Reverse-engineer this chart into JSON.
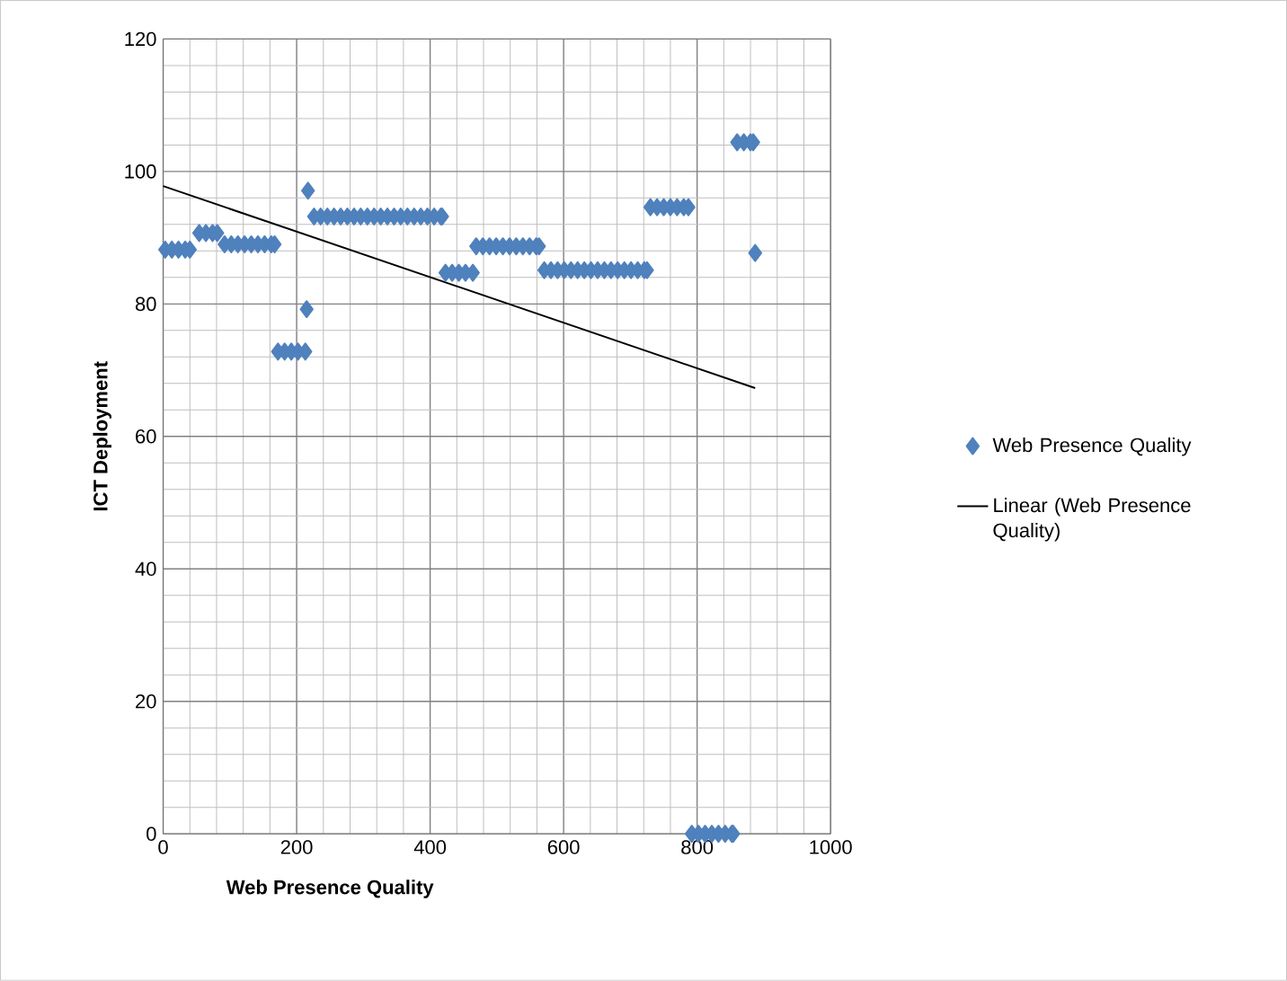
{
  "chart_data": {
    "type": "scatter",
    "xlabel": "Web Presence Quality",
    "ylabel": "ICT  Deployment",
    "xlim": [
      0,
      1000
    ],
    "ylim": [
      0,
      120
    ],
    "xticks": [
      0,
      200,
      400,
      600,
      800,
      1000
    ],
    "yticks": [
      0,
      20,
      40,
      60,
      80,
      100,
      120
    ],
    "grid": true,
    "legend": "right",
    "marker": "diamond",
    "series": [
      {
        "name": "Web Presence Quality",
        "color": "#4f81bd",
        "x": [
          3,
          13,
          23,
          33,
          40,
          54,
          64,
          74,
          81,
          92,
          102,
          112,
          122,
          132,
          142,
          152,
          162,
          167,
          217,
          226,
          236,
          246,
          256,
          266,
          276,
          286,
          296,
          306,
          316,
          326,
          336,
          346,
          356,
          366,
          376,
          386,
          396,
          406,
          416,
          418,
          215,
          172,
          182,
          192,
          202,
          213,
          423,
          433,
          443,
          453,
          464,
          469,
          479,
          489,
          499,
          509,
          519,
          529,
          539,
          549,
          559,
          563,
          571,
          581,
          591,
          601,
          611,
          621,
          631,
          641,
          651,
          661,
          671,
          681,
          691,
          701,
          711,
          721,
          725,
          730,
          740,
          750,
          760,
          770,
          780,
          787,
          860,
          870,
          880,
          884,
          887,
          792,
          802,
          812,
          822,
          832,
          842,
          852,
          854
        ],
        "values": [
          88.2,
          88.2,
          88.2,
          88.2,
          88.2,
          90.7,
          90.7,
          90.7,
          90.7,
          89.0,
          89.0,
          89.0,
          89.0,
          89.0,
          89.0,
          89.0,
          89.0,
          89.0,
          97.1,
          93.2,
          93.2,
          93.2,
          93.2,
          93.2,
          93.2,
          93.2,
          93.2,
          93.2,
          93.2,
          93.2,
          93.2,
          93.2,
          93.2,
          93.2,
          93.2,
          93.2,
          93.2,
          93.2,
          93.2,
          93.2,
          79.2,
          72.8,
          72.8,
          72.8,
          72.8,
          72.8,
          84.7,
          84.7,
          84.7,
          84.7,
          84.7,
          88.7,
          88.7,
          88.7,
          88.7,
          88.7,
          88.7,
          88.7,
          88.7,
          88.7,
          88.7,
          88.7,
          85.1,
          85.1,
          85.1,
          85.1,
          85.1,
          85.1,
          85.1,
          85.1,
          85.1,
          85.1,
          85.1,
          85.1,
          85.1,
          85.1,
          85.1,
          85.1,
          85.1,
          94.6,
          94.6,
          94.6,
          94.6,
          94.6,
          94.6,
          94.6,
          104.4,
          104.4,
          104.4,
          104.4,
          87.7,
          0,
          0,
          0,
          0,
          0,
          0,
          0,
          0
        ]
      },
      {
        "name": "Linear (Web Presence Quality)",
        "type": "line",
        "color": "#000000",
        "marker": "none",
        "x": [
          0,
          887
        ],
        "values": [
          97.8,
          67.3
        ]
      }
    ]
  }
}
